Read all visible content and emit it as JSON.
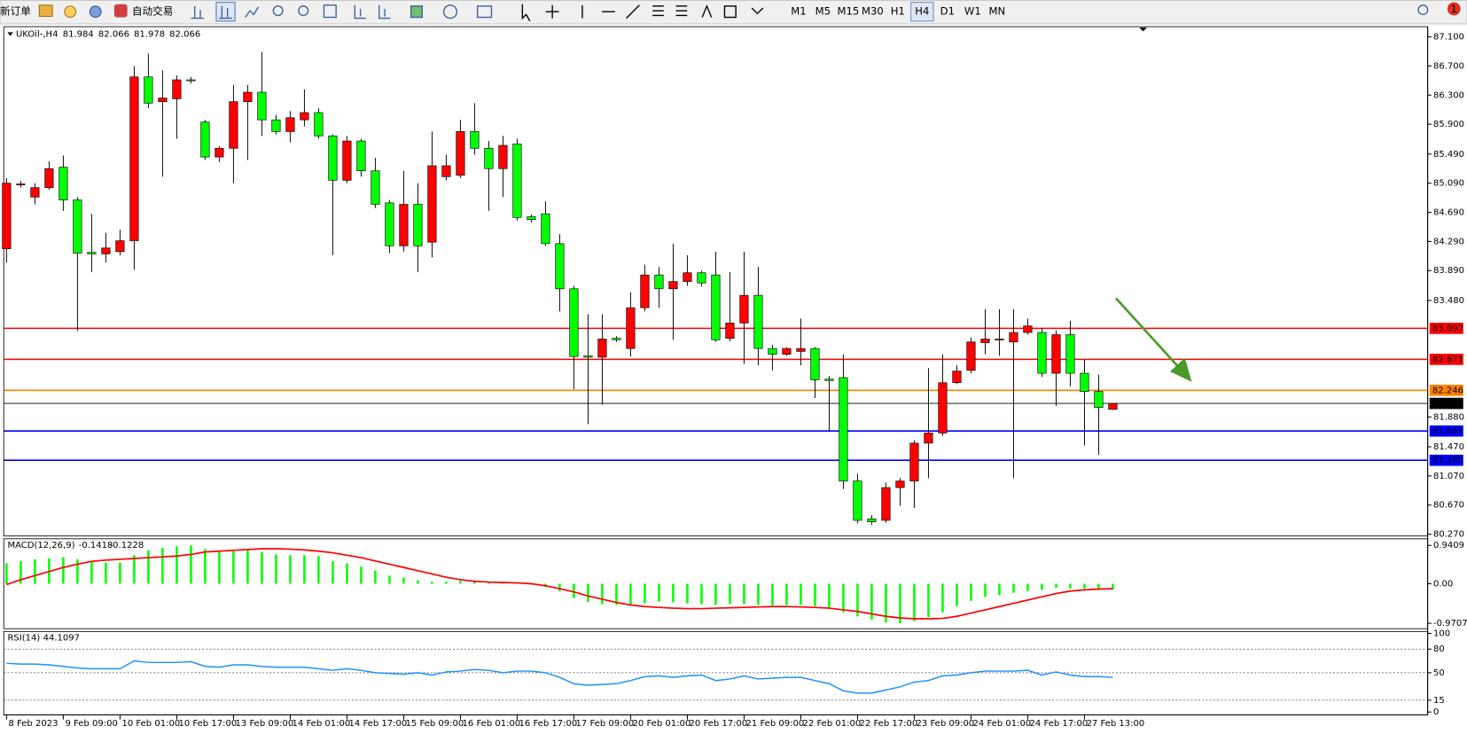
{
  "toolbar": {
    "new_order": "新订单",
    "auto_trading": "自动交易",
    "timeframes": [
      "M1",
      "M5",
      "M15",
      "M30",
      "H1",
      "H4",
      "D1",
      "W1",
      "MN"
    ],
    "active_timeframe": "H4",
    "notifications": 1
  },
  "chart_data": [
    {
      "type": "candlestick",
      "title": "UKOil-,H4",
      "last_ohlc": [
        81.984,
        82.066,
        81.978,
        82.066
      ],
      "up_color": "#ff0000",
      "down_color": "#00ff00",
      "categories": [
        "8 Feb 2023",
        null,
        null,
        null,
        "9 Feb 09:00",
        null,
        null,
        null,
        "10 Feb 01:00",
        null,
        null,
        null,
        "10 Feb 17:00",
        null,
        null,
        null,
        "13 Feb 09:00",
        null,
        null,
        null,
        "14 Feb 01:00",
        null,
        null,
        null,
        "14 Feb 17:00",
        null,
        null,
        null,
        "15 Feb 09:00",
        null,
        null,
        null,
        "16 Feb 01:00",
        null,
        null,
        null,
        "16 Feb 17:00",
        null,
        null,
        null,
        "17 Feb 09:00",
        null,
        null,
        null,
        "20 Feb 01:00",
        null,
        null,
        null,
        "20 Feb 17:00",
        null,
        null,
        null,
        "21 Feb 09:00",
        null,
        null,
        null,
        "22 Feb 01:00",
        null,
        null,
        null,
        "22 Feb 17:00",
        null,
        null,
        null,
        "23 Feb 09:00",
        null,
        null,
        null,
        "24 Feb 01:00",
        null,
        null,
        null,
        "24 Feb 17:00",
        null,
        null,
        null,
        "27 Feb 13:00",
        null,
        null
      ],
      "open": [
        84.19,
        85.07,
        84.9,
        85.03,
        85.31,
        84.86,
        84.14,
        84.12,
        84.15,
        84.3,
        86.55,
        86.21,
        86.25,
        86.51,
        85.93,
        85.45,
        85.57,
        86.21,
        86.34,
        85.96,
        85.8,
        85.96,
        86.06,
        85.74,
        85.13,
        85.67,
        85.26,
        84.82,
        84.23,
        84.8,
        84.28,
        85.18,
        85.2,
        85.8,
        85.57,
        85.29,
        85.63,
        84.63,
        84.67,
        84.26,
        83.64,
        82.72,
        82.7,
        82.96,
        82.82,
        83.38,
        83.83,
        83.64,
        83.74,
        83.86,
        83.83,
        82.96,
        83.17,
        83.55,
        82.82,
        82.74,
        82.78,
        82.82,
        82.4,
        82.42,
        81.0,
        80.48,
        80.46,
        80.91,
        81.0,
        81.52,
        81.66,
        82.35,
        82.52,
        82.9,
        82.94,
        82.91,
        83.04,
        83.04,
        82.48,
        83.01,
        82.48,
        82.23,
        81.984
      ],
      "high": [
        85.16,
        85.12,
        85.09,
        85.39,
        85.47,
        84.9,
        84.67,
        84.41,
        84.45,
        86.7,
        86.87,
        86.64,
        86.57,
        86.55,
        85.96,
        85.6,
        86.44,
        86.44,
        86.89,
        86.03,
        86.08,
        86.38,
        86.12,
        85.76,
        85.74,
        85.7,
        85.44,
        84.86,
        85.26,
        85.09,
        85.8,
        85.48,
        85.96,
        86.19,
        85.67,
        85.74,
        85.7,
        84.66,
        84.84,
        84.39,
        83.68,
        83.29,
        83.29,
        82.99,
        83.59,
        83.97,
        83.94,
        84.26,
        84.1,
        83.89,
        84.15,
        83.87,
        84.15,
        83.94,
        82.87,
        82.84,
        83.23,
        82.84,
        82.44,
        82.74,
        81.1,
        80.53,
        80.98,
        81.04,
        81.56,
        82.55,
        82.74,
        82.59,
        82.97,
        83.36,
        83.36,
        83.36,
        83.23,
        83.1,
        83.07,
        83.2,
        82.67,
        82.46,
        82.066
      ],
      "low": [
        84.0,
        85.03,
        84.8,
        85.0,
        84.71,
        83.06,
        83.87,
        84.0,
        84.1,
        83.9,
        86.12,
        85.18,
        85.7,
        86.46,
        85.41,
        85.38,
        85.09,
        85.41,
        85.74,
        85.76,
        85.65,
        85.87,
        85.7,
        84.1,
        85.09,
        85.18,
        84.75,
        84.13,
        84.15,
        83.87,
        84.07,
        85.13,
        85.16,
        85.48,
        84.71,
        84.9,
        84.58,
        84.55,
        84.23,
        83.33,
        82.26,
        81.78,
        82.05,
        82.91,
        82.71,
        83.33,
        83.38,
        82.94,
        83.68,
        83.67,
        82.91,
        82.92,
        82.61,
        82.59,
        82.52,
        82.72,
        82.59,
        82.14,
        81.69,
        80.89,
        80.42,
        80.4,
        80.43,
        80.66,
        80.63,
        81.04,
        81.62,
        82.33,
        82.48,
        82.74,
        82.72,
        81.04,
        83.01,
        82.43,
        82.03,
        82.3,
        81.49,
        81.36,
        81.978
      ],
      "close": [
        85.09,
        85.08,
        85.03,
        85.29,
        84.86,
        84.13,
        84.12,
        84.2,
        84.3,
        86.55,
        86.19,
        86.26,
        86.51,
        86.5,
        85.45,
        85.57,
        86.21,
        86.34,
        85.96,
        85.8,
        85.99,
        86.06,
        85.74,
        85.13,
        85.67,
        85.26,
        84.8,
        84.23,
        84.8,
        84.23,
        85.33,
        85.33,
        85.8,
        85.57,
        85.29,
        85.61,
        84.62,
        84.59,
        84.26,
        83.64,
        82.71,
        82.7,
        82.95,
        82.94,
        83.38,
        83.83,
        83.64,
        83.74,
        83.86,
        83.72,
        82.94,
        83.17,
        83.55,
        82.82,
        82.74,
        82.82,
        82.82,
        82.39,
        82.38,
        81.0,
        80.46,
        80.44,
        80.91,
        81.0,
        81.52,
        81.66,
        82.35,
        82.51,
        82.91,
        82.95,
        82.95,
        83.04,
        83.13,
        82.48,
        83.01,
        82.48,
        82.23,
        82.01,
        82.066
      ],
      "ylim": [
        80.245,
        87.24
      ],
      "yticks": [
        {
          "value": 87.1,
          "label": "87.100"
        },
        {
          "value": 86.7,
          "label": "86.700"
        },
        {
          "value": 86.3,
          "label": "86.300"
        },
        {
          "value": 85.9,
          "label": "85.900"
        },
        {
          "value": 85.49,
          "label": "85.490"
        },
        {
          "value": 85.09,
          "label": "85.090"
        },
        {
          "value": 84.69,
          "label": "84.690"
        },
        {
          "value": 84.29,
          "label": "84.290"
        },
        {
          "value": 83.89,
          "label": "83.890"
        },
        {
          "value": 83.48,
          "label": "83.480"
        },
        {
          "value": 81.88,
          "label": "81.880"
        },
        {
          "value": 81.47,
          "label": "81.470"
        },
        {
          "value": 81.07,
          "label": "81.070"
        },
        {
          "value": 80.67,
          "label": "80.670"
        },
        {
          "value": 80.27,
          "label": "80.270"
        }
      ],
      "levels": [
        {
          "value": 83.097,
          "color": "#ff0000"
        },
        {
          "value": 82.671,
          "color": "#ff0000"
        },
        {
          "value": 82.246,
          "color": "#ff8000"
        },
        {
          "value": 82.066,
          "color": "#000000"
        },
        {
          "value": 81.687,
          "color": "#0000ff"
        },
        {
          "value": 81.285,
          "color": "#0000ff"
        }
      ]
    },
    {
      "type": "macd",
      "title": "MACD(12,26,9)",
      "histogram": {
        "color": "#00ff00",
        "values": [
          0.5,
          0.55,
          0.6,
          0.62,
          0.65,
          0.6,
          0.55,
          0.52,
          0.52,
          0.7,
          0.82,
          0.88,
          0.92,
          0.94,
          0.85,
          0.78,
          0.8,
          0.82,
          0.78,
          0.72,
          0.7,
          0.7,
          0.68,
          0.55,
          0.5,
          0.42,
          0.32,
          0.2,
          0.15,
          0.08,
          0.05,
          0.05,
          0.07,
          0.08,
          0.05,
          0.04,
          0.02,
          -0.02,
          -0.08,
          -0.18,
          -0.35,
          -0.45,
          -0.5,
          -0.52,
          -0.52,
          -0.48,
          -0.44,
          -0.45,
          -0.48,
          -0.5,
          -0.52,
          -0.5,
          -0.5,
          -0.52,
          -0.53,
          -0.52,
          -0.52,
          -0.55,
          -0.58,
          -0.7,
          -0.8,
          -0.88,
          -0.95,
          -0.97,
          -0.92,
          -0.82,
          -0.7,
          -0.55,
          -0.42,
          -0.32,
          -0.28,
          -0.22,
          -0.18,
          -0.15,
          -0.1,
          -0.12,
          -0.12,
          -0.13,
          -0.1418
        ]
      },
      "signal": {
        "color": "#ff0000",
        "values": [
          -0.02,
          0.1,
          0.2,
          0.3,
          0.4,
          0.48,
          0.55,
          0.58,
          0.6,
          0.62,
          0.64,
          0.66,
          0.68,
          0.72,
          0.78,
          0.8,
          0.82,
          0.84,
          0.86,
          0.86,
          0.85,
          0.83,
          0.8,
          0.76,
          0.7,
          0.64,
          0.56,
          0.48,
          0.4,
          0.32,
          0.24,
          0.16,
          0.1,
          0.06,
          0.04,
          0.03,
          0.02,
          0.0,
          -0.05,
          -0.12,
          -0.2,
          -0.3,
          -0.38,
          -0.46,
          -0.52,
          -0.56,
          -0.58,
          -0.6,
          -0.61,
          -0.61,
          -0.6,
          -0.59,
          -0.58,
          -0.57,
          -0.56,
          -0.56,
          -0.57,
          -0.58,
          -0.6,
          -0.64,
          -0.68,
          -0.74,
          -0.8,
          -0.84,
          -0.86,
          -0.86,
          -0.85,
          -0.8,
          -0.72,
          -0.64,
          -0.56,
          -0.48,
          -0.4,
          -0.32,
          -0.24,
          -0.18,
          -0.15,
          -0.13,
          -0.1228
        ]
      },
      "ylim": [
        -1.08,
        1.08
      ],
      "yticks": [
        0.9409,
        {
          "value": 0,
          "label": "0.00"
        },
        -0.9707
      ]
    },
    {
      "type": "rsi",
      "title": "RSI(14)",
      "color": "#1e90ff",
      "values": [
        62,
        61,
        61,
        60,
        58,
        56,
        55,
        55,
        55,
        65,
        63,
        63,
        63,
        64,
        58,
        57,
        60,
        60,
        58,
        57,
        57,
        57,
        55,
        53,
        55,
        53,
        50,
        49,
        48,
        50,
        47,
        51,
        52,
        54,
        53,
        50,
        52,
        52,
        50,
        44,
        36,
        34,
        35,
        36,
        40,
        45,
        46,
        44,
        46,
        47,
        40,
        42,
        46,
        42,
        43,
        44,
        44,
        40,
        36,
        27,
        24,
        24,
        28,
        32,
        38,
        40,
        46,
        47,
        50,
        52,
        52,
        52,
        53,
        47,
        51,
        47,
        45,
        45,
        44.1097
      ],
      "ylim": [
        0,
        100
      ],
      "yticks": [
        100,
        80,
        50,
        15,
        0
      ]
    }
  ]
}
